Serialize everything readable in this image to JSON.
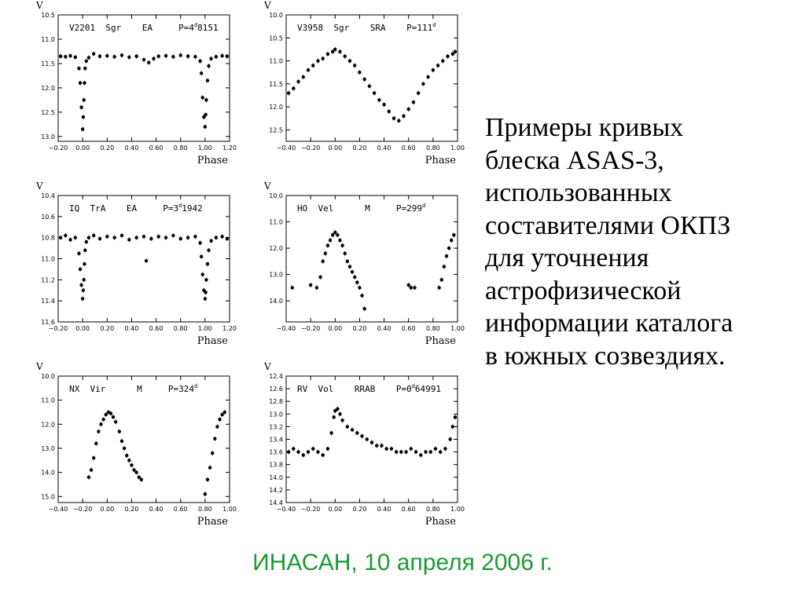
{
  "chart_data": [
    {
      "type": "scatter",
      "ylabel": "V",
      "xlabel": "Phase",
      "annotation": "V2201  Sgr    EA     P=4.8151",
      "annotation_parts": {
        "prefix": "V2201  Sgr    EA     P=4",
        "sup": "d",
        "suffix": "8151"
      },
      "xlim": [
        -0.2,
        1.2
      ],
      "ylim": [
        13.1,
        10.5
      ],
      "yinvert": true,
      "xticks": [
        "−0.20",
        "0.00",
        "0.20",
        "0.40",
        "0.60",
        "0.80",
        "1.00",
        "1.20"
      ],
      "xtick_values": [
        -0.2,
        0.0,
        0.2,
        0.4,
        0.6,
        0.8,
        1.0,
        1.2
      ],
      "yticks": [
        "10.5",
        "11.0",
        "11.5",
        "12.0",
        "12.5",
        "13.0"
      ],
      "ytick_values": [
        10.5,
        11.0,
        11.5,
        12.0,
        12.5,
        13.0
      ],
      "series": [
        {
          "x": [
            -0.18,
            -0.14,
            -0.1,
            -0.06,
            -0.03,
            -0.02,
            -0.01,
            0.0,
            0.005,
            0.01,
            0.015,
            0.02,
            0.03,
            0.05,
            0.09,
            0.14,
            0.2,
            0.26,
            0.32,
            0.38,
            0.44,
            0.5,
            0.54,
            0.58,
            0.62,
            0.68,
            0.74,
            0.8,
            0.86,
            0.92,
            0.96,
            0.97,
            0.98,
            0.99,
            1.0,
            1.005,
            1.01,
            1.02,
            1.03,
            1.05,
            1.09,
            1.14,
            1.18
          ],
          "y": [
            11.35,
            11.36,
            11.34,
            11.37,
            11.6,
            11.9,
            12.4,
            12.85,
            12.6,
            12.25,
            11.9,
            11.6,
            11.45,
            11.38,
            11.3,
            11.35,
            11.34,
            11.36,
            11.33,
            11.37,
            11.35,
            11.42,
            11.48,
            11.4,
            11.35,
            11.34,
            11.36,
            11.33,
            11.35,
            11.36,
            11.45,
            11.7,
            12.2,
            12.6,
            12.8,
            12.55,
            12.25,
            11.85,
            11.55,
            11.4,
            11.36,
            11.34,
            11.35
          ]
        }
      ]
    },
    {
      "type": "scatter",
      "ylabel": "V",
      "xlabel": "Phase",
      "annotation": "V3958  Sgr    SRA    P=111d",
      "annotation_parts": {
        "prefix": "V3958  Sgr    SRA    P=111",
        "sup": "d",
        "suffix": ""
      },
      "xlim": [
        -0.4,
        1.0
      ],
      "ylim": [
        12.75,
        10.0
      ],
      "yinvert": true,
      "xticks": [
        "−0.40",
        "−0.20",
        "0.00",
        "0.20",
        "0.40",
        "0.60",
        "0.80",
        "1.00"
      ],
      "xtick_values": [
        -0.4,
        -0.2,
        0.0,
        0.2,
        0.4,
        0.6,
        0.8,
        1.0
      ],
      "yticks": [
        "10.0",
        "10.5",
        "11.0",
        "11.5",
        "12.0",
        "12.5"
      ],
      "ytick_values": [
        10.0,
        10.5,
        11.0,
        11.5,
        12.0,
        12.5
      ],
      "series": [
        {
          "x": [
            -0.38,
            -0.34,
            -0.3,
            -0.26,
            -0.22,
            -0.18,
            -0.14,
            -0.1,
            -0.06,
            -0.02,
            0.0,
            0.04,
            0.08,
            0.12,
            0.16,
            0.2,
            0.24,
            0.28,
            0.32,
            0.36,
            0.4,
            0.44,
            0.48,
            0.52,
            0.56,
            0.6,
            0.64,
            0.68,
            0.72,
            0.76,
            0.8,
            0.84,
            0.88,
            0.92,
            0.96,
            0.98
          ],
          "y": [
            11.7,
            11.6,
            11.45,
            11.35,
            11.2,
            11.1,
            11.0,
            10.95,
            10.85,
            10.8,
            10.75,
            10.8,
            10.9,
            11.0,
            11.1,
            11.25,
            11.4,
            11.55,
            11.7,
            11.85,
            11.95,
            12.1,
            12.25,
            12.3,
            12.2,
            12.05,
            11.9,
            11.7,
            11.5,
            11.35,
            11.2,
            11.1,
            11.0,
            10.9,
            10.85,
            10.8
          ]
        }
      ]
    },
    {
      "type": "scatter",
      "ylabel": "V",
      "xlabel": "Phase",
      "annotation": "IQ  TrA    EA     P=3.1942",
      "annotation_parts": {
        "prefix": "IQ  TrA    EA     P=3",
        "sup": "d",
        "suffix": "1942"
      },
      "xlim": [
        -0.2,
        1.2
      ],
      "ylim": [
        11.6,
        10.4
      ],
      "yinvert": true,
      "xticks": [
        "−0.20",
        "0.00",
        "0.20",
        "0.40",
        "0.60",
        "0.80",
        "1.00",
        "1.20"
      ],
      "xtick_values": [
        -0.2,
        0.0,
        0.2,
        0.4,
        0.6,
        0.8,
        1.0,
        1.2
      ],
      "yticks": [
        "10.4",
        "10.6",
        "10.8",
        "11.0",
        "11.2",
        "11.4",
        "11.6"
      ],
      "ytick_values": [
        10.4,
        10.6,
        10.8,
        11.0,
        11.2,
        11.4,
        11.6
      ],
      "series": [
        {
          "x": [
            -0.18,
            -0.14,
            -0.1,
            -0.06,
            -0.03,
            -0.02,
            -0.01,
            0.0,
            0.005,
            0.01,
            0.015,
            0.02,
            0.03,
            0.05,
            0.09,
            0.14,
            0.2,
            0.26,
            0.32,
            0.38,
            0.44,
            0.5,
            0.52,
            0.56,
            0.62,
            0.68,
            0.74,
            0.8,
            0.86,
            0.92,
            0.96,
            0.97,
            0.98,
            0.99,
            1.0,
            1.005,
            1.01,
            1.02,
            1.03,
            1.05,
            1.09,
            1.14,
            1.18
          ],
          "y": [
            10.8,
            10.78,
            10.82,
            10.8,
            10.95,
            11.1,
            11.25,
            11.38,
            11.3,
            11.2,
            11.05,
            10.92,
            10.84,
            10.8,
            10.78,
            10.81,
            10.79,
            10.8,
            10.78,
            10.82,
            10.8,
            10.79,
            11.02,
            10.81,
            10.79,
            10.8,
            10.78,
            10.81,
            10.8,
            10.79,
            10.85,
            10.98,
            11.15,
            11.3,
            11.38,
            11.32,
            11.2,
            11.05,
            10.92,
            10.83,
            10.8,
            10.79,
            10.81
          ]
        }
      ]
    },
    {
      "type": "scatter",
      "ylabel": "V",
      "xlabel": "Phase",
      "annotation": "HO  Vel      M     P=299d",
      "annotation_parts": {
        "prefix": "HO  Vel      M     P=299",
        "sup": "d",
        "suffix": ""
      },
      "xlim": [
        -0.4,
        1.0
      ],
      "ylim": [
        14.8,
        10.0
      ],
      "yinvert": true,
      "xticks": [
        "−0.40",
        "−0.20",
        "0.00",
        "0.20",
        "0.40",
        "0.60",
        "0.80",
        "1.00"
      ],
      "xtick_values": [
        -0.4,
        -0.2,
        0.0,
        0.2,
        0.4,
        0.6,
        0.8,
        1.0
      ],
      "yticks": [
        "10.0",
        "11.0",
        "12.0",
        "13.0",
        "14.0"
      ],
      "ytick_values": [
        10.0,
        11.0,
        12.0,
        13.0,
        14.0
      ],
      "series": [
        {
          "x": [
            -0.35,
            -0.2,
            -0.15,
            -0.12,
            -0.1,
            -0.08,
            -0.06,
            -0.04,
            -0.02,
            0.0,
            0.02,
            0.04,
            0.06,
            0.08,
            0.1,
            0.12,
            0.14,
            0.16,
            0.18,
            0.2,
            0.22,
            0.24,
            0.6,
            0.62,
            0.65,
            0.85,
            0.87,
            0.89,
            0.91,
            0.93,
            0.95,
            0.97
          ],
          "y": [
            13.5,
            13.4,
            13.5,
            13.1,
            12.5,
            12.2,
            11.9,
            11.7,
            11.5,
            11.4,
            11.5,
            11.7,
            11.9,
            12.2,
            12.5,
            12.7,
            12.9,
            13.1,
            13.3,
            13.5,
            13.8,
            14.3,
            13.4,
            13.5,
            13.5,
            13.5,
            13.2,
            12.7,
            12.3,
            12.0,
            11.7,
            11.5
          ]
        }
      ]
    },
    {
      "type": "scatter",
      "ylabel": "V",
      "xlabel": "Phase",
      "annotation": "NX  Vir      M     P=324d",
      "annotation_parts": {
        "prefix": "NX  Vir      M     P=324",
        "sup": "d",
        "suffix": ""
      },
      "xlim": [
        -0.4,
        1.0
      ],
      "ylim": [
        15.25,
        10.0
      ],
      "yinvert": true,
      "xticks": [
        "−0.40",
        "−0.20",
        "0.00",
        "0.20",
        "0.40",
        "0.60",
        "0.80",
        "1.00"
      ],
      "xtick_values": [
        -0.4,
        -0.2,
        0.0,
        0.2,
        0.4,
        0.6,
        0.8,
        1.0
      ],
      "yticks": [
        "10.0",
        "11.0",
        "12.0",
        "13.0",
        "14.0",
        "15.0"
      ],
      "ytick_values": [
        10.0,
        11.0,
        12.0,
        13.0,
        14.0,
        15.0
      ],
      "series": [
        {
          "x": [
            -0.15,
            -0.13,
            -0.11,
            -0.09,
            -0.07,
            -0.05,
            -0.03,
            -0.01,
            0.01,
            0.03,
            0.05,
            0.07,
            0.1,
            0.12,
            0.14,
            0.16,
            0.18,
            0.2,
            0.22,
            0.24,
            0.26,
            0.28,
            0.8,
            0.82,
            0.84,
            0.86,
            0.88,
            0.9,
            0.92,
            0.94,
            0.96
          ],
          "y": [
            14.2,
            13.9,
            13.4,
            12.8,
            12.3,
            12.0,
            11.8,
            11.6,
            11.5,
            11.55,
            11.7,
            11.9,
            12.3,
            12.7,
            13.0,
            13.3,
            13.5,
            13.7,
            13.9,
            14.0,
            14.2,
            14.3,
            14.9,
            14.3,
            13.8,
            13.2,
            12.6,
            12.1,
            11.8,
            11.6,
            11.5
          ]
        }
      ]
    },
    {
      "type": "scatter",
      "ylabel": "V",
      "xlabel": "Phase",
      "annotation": "RV  Vol    RRAB    P=0.64991",
      "annotation_parts": {
        "prefix": "RV  Vol    RRAB    P=0",
        "sup": "d",
        "suffix": "64991"
      },
      "xlim": [
        -0.4,
        1.0
      ],
      "ylim": [
        14.4,
        12.4
      ],
      "yinvert": true,
      "xticks": [
        "−0.40",
        "−0.20",
        "0.00",
        "0.20",
        "0.40",
        "0.60",
        "0.80",
        "1.00"
      ],
      "xtick_values": [
        -0.4,
        -0.2,
        0.0,
        0.2,
        0.4,
        0.6,
        0.8,
        1.0
      ],
      "yticks": [
        "12.4",
        "12.6",
        "12.8",
        "13.0",
        "13.2",
        "13.4",
        "13.6",
        "13.8",
        "14.0",
        "14.2",
        "14.4"
      ],
      "ytick_values": [
        12.4,
        12.6,
        12.8,
        13.0,
        13.2,
        13.4,
        13.6,
        13.8,
        14.0,
        14.2,
        14.4
      ],
      "series": [
        {
          "x": [
            -0.38,
            -0.34,
            -0.3,
            -0.26,
            -0.22,
            -0.18,
            -0.14,
            -0.1,
            -0.06,
            -0.03,
            -0.01,
            0.0,
            0.02,
            0.04,
            0.06,
            0.1,
            0.14,
            0.18,
            0.22,
            0.26,
            0.3,
            0.34,
            0.38,
            0.42,
            0.46,
            0.5,
            0.54,
            0.58,
            0.62,
            0.66,
            0.7,
            0.74,
            0.78,
            0.82,
            0.86,
            0.9,
            0.94,
            0.96,
            0.98
          ],
          "y": [
            13.6,
            13.55,
            13.6,
            13.65,
            13.6,
            13.55,
            13.6,
            13.65,
            13.55,
            13.3,
            13.05,
            12.95,
            12.92,
            13.0,
            13.1,
            13.2,
            13.25,
            13.3,
            13.35,
            13.4,
            13.45,
            13.5,
            13.5,
            13.55,
            13.55,
            13.6,
            13.6,
            13.6,
            13.55,
            13.6,
            13.65,
            13.6,
            13.6,
            13.55,
            13.6,
            13.55,
            13.4,
            13.2,
            13.05
          ]
        }
      ]
    }
  ],
  "side_text_lines": [
    "Примеры кривых",
    "блеска ASAS-3,",
    "использованных",
    "составителями ОКПЗ",
    "для уточнения",
    "астрофизической",
    "информации каталога",
    "в южных созвездиях."
  ],
  "footer": "ИНАСАН, 10 апреля 2006 г."
}
